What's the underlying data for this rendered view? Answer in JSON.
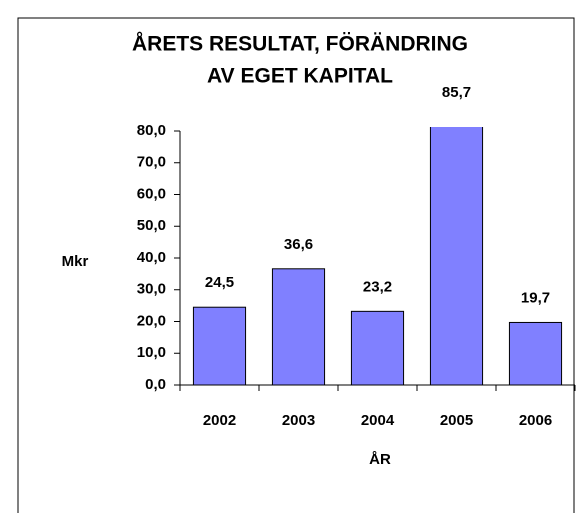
{
  "chart_data": {
    "type": "bar",
    "title": [
      "ÅRETS RESULTAT, FÖRÄNDRING",
      "AV EGET KAPITAL"
    ],
    "x_label": "ÅR",
    "y_label": "Mkr",
    "categories": [
      "2002",
      "2003",
      "2004",
      "2005",
      "2006"
    ],
    "values": [
      24.5,
      36.6,
      23.2,
      85.7,
      19.7
    ],
    "value_labels": [
      "24,5",
      "36,6",
      "23,2",
      "85,7",
      "19,7"
    ],
    "color": "#8080ff",
    "ylim": [
      0,
      80
    ],
    "yticks": [
      {
        "value": 0,
        "label": "0,0"
      },
      {
        "value": 10,
        "label": "10,0"
      },
      {
        "value": 20,
        "label": "20,0"
      },
      {
        "value": 30,
        "label": "30,0"
      },
      {
        "value": 40,
        "label": "40,0"
      },
      {
        "value": 50,
        "label": "50,0"
      },
      {
        "value": 60,
        "label": "60,0"
      },
      {
        "value": 70,
        "label": "70,0"
      },
      {
        "value": 80,
        "label": "80,0"
      }
    ],
    "grid": false
  }
}
